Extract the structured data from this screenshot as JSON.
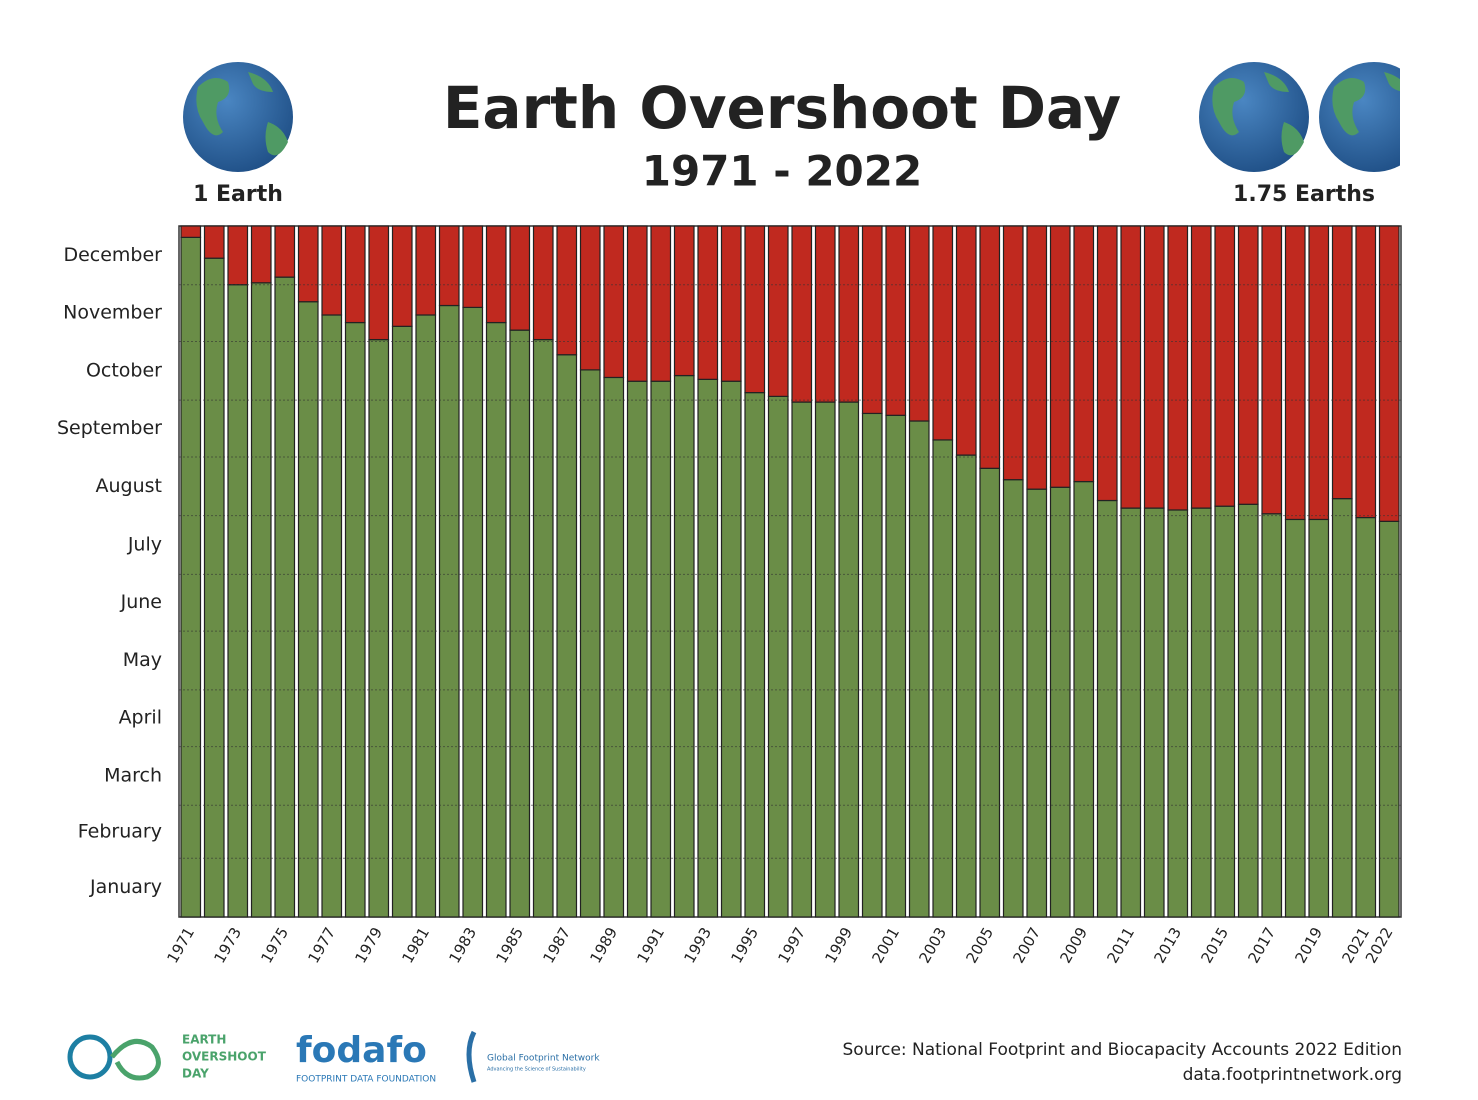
{
  "chart_data": {
    "type": "stacked_bar",
    "title": "Earth Overshoot Day",
    "subtitle": "1971 - 2022",
    "annotations": {
      "left": "1 Earth",
      "right": "1.75 Earths"
    },
    "source": [
      "Source: National Footprint and Biocapacity Accounts 2022 Edition",
      "data.footprintnetwork.org"
    ],
    "logos": {
      "eod": [
        "EARTH",
        "OVERSHOOT",
        "DAY"
      ],
      "fodafo": "fodafo",
      "fodafo_sub": "FOOTPRINT DATA FOUNDATION",
      "gfn": "Global Footprint Network",
      "gfn_sub": "Advancing the Science of Sustainability"
    },
    "categories": [
      "1971",
      null,
      "1973",
      null,
      "1975",
      null,
      "1977",
      null,
      "1979",
      null,
      "1981",
      null,
      "1983",
      null,
      "1985",
      null,
      "1987",
      null,
      "1989",
      null,
      "1991",
      null,
      "1993",
      null,
      "1995",
      null,
      "1997",
      null,
      "1999",
      null,
      "2001",
      null,
      "2003",
      null,
      "2005",
      null,
      "2007",
      null,
      "2009",
      null,
      "2011",
      null,
      "2013",
      null,
      "2015",
      null,
      "2017",
      null,
      "2019",
      null,
      "2021",
      "2022"
    ],
    "series": [
      {
        "color": "#6a8d47",
        "values": [
          359,
          348,
          334,
          335,
          338,
          325,
          318,
          314,
          305,
          312,
          318,
          323,
          322,
          314,
          310,
          305,
          297,
          289,
          285,
          283,
          283,
          286,
          284,
          283,
          277,
          275,
          272,
          272,
          272,
          266,
          265,
          262,
          252,
          244,
          237,
          231,
          226,
          227,
          230,
          220,
          216,
          216,
          215,
          216,
          217,
          218,
          213,
          210,
          210,
          221,
          211,
          209
        ]
      },
      {
        "color": "#c0291f",
        "values": [
          6,
          17,
          31,
          30,
          27,
          40,
          47,
          51,
          60,
          53,
          47,
          42,
          43,
          51,
          55,
          60,
          68,
          76,
          80,
          82,
          82,
          79,
          81,
          82,
          88,
          90,
          93,
          93,
          93,
          99,
          100,
          103,
          113,
          121,
          128,
          134,
          139,
          138,
          135,
          145,
          149,
          149,
          150,
          149,
          148,
          147,
          152,
          155,
          155,
          144,
          154,
          156
        ]
      }
    ],
    "ylim": [
      0,
      365
    ],
    "yticks": [
      {
        "value": 0,
        "label": "January"
      },
      {
        "value": 31,
        "label": "February"
      },
      {
        "value": 59,
        "label": "March"
      },
      {
        "value": 90,
        "label": "April"
      },
      {
        "value": 120,
        "label": "May"
      },
      {
        "value": 151,
        "label": "June"
      },
      {
        "value": 181,
        "label": "July"
      },
      {
        "value": 212,
        "label": "August"
      },
      {
        "value": 243,
        "label": "September"
      },
      {
        "value": 273,
        "label": "October"
      },
      {
        "value": 304,
        "label": "November"
      },
      {
        "value": 334,
        "label": "December"
      }
    ],
    "grid": true
  }
}
